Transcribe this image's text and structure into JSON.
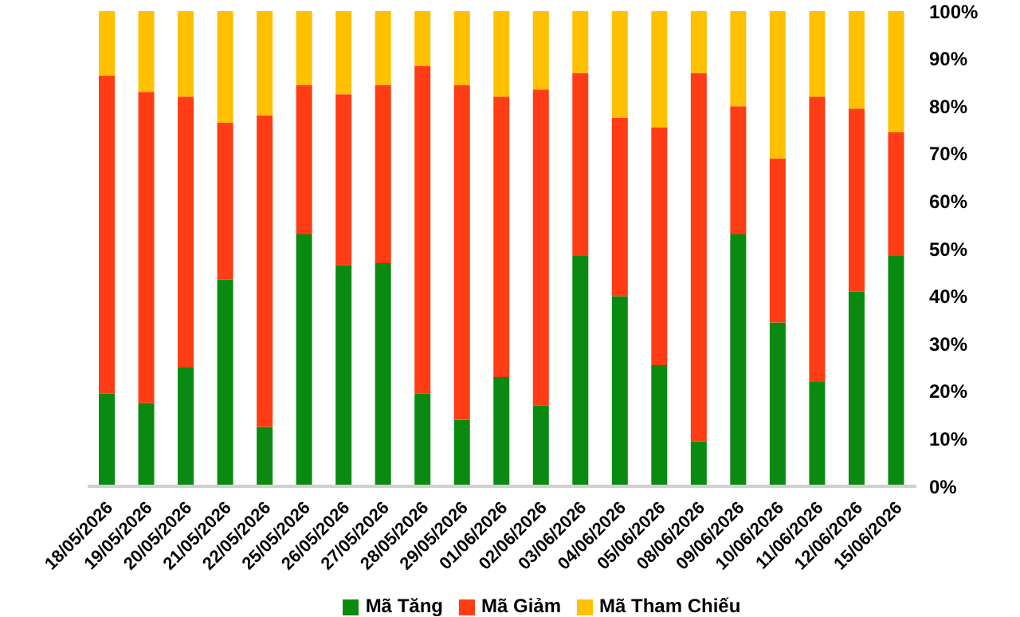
{
  "chart_data": {
    "type": "bar",
    "stacked": true,
    "categories": [
      "18/05/2026",
      "19/05/2026",
      "20/05/2026",
      "21/05/2026",
      "22/05/2026",
      "25/05/2026",
      "26/05/2026",
      "27/05/2026",
      "28/05/2026",
      "29/05/2026",
      "01/06/2026",
      "02/06/2026",
      "03/06/2026",
      "04/06/2026",
      "05/06/2026",
      "08/06/2026",
      "09/06/2026",
      "10/06/2026",
      "11/06/2026",
      "12/06/2026",
      "15/06/2026"
    ],
    "series": [
      {
        "name": "Mã Tăng",
        "color": "#0a8a10",
        "values": [
          19.5,
          17.5,
          25,
          43.5,
          12.5,
          53,
          46.5,
          47,
          19.5,
          14,
          23,
          17,
          48.5,
          40,
          25.5,
          9.5,
          53,
          34.5,
          22,
          41,
          48.5
        ]
      },
      {
        "name": "Mã Giảm",
        "color": "#ff3c14",
        "values": [
          67,
          65.5,
          57,
          33,
          65.5,
          31.5,
          36,
          37.5,
          69,
          70.5,
          59,
          66.5,
          38.5,
          37.5,
          50,
          77.5,
          27,
          34.5,
          60,
          38.5,
          26
        ]
      },
      {
        "name": "Mã Tham Chiếu",
        "color": "#ffc000",
        "values": [
          13.5,
          17,
          18,
          23.5,
          22,
          15.5,
          17.5,
          15.5,
          11.5,
          15.5,
          18,
          16.5,
          13,
          22.5,
          24.5,
          13,
          20,
          31,
          18,
          20.5,
          25.5
        ]
      }
    ],
    "ylim": [
      0,
      100
    ],
    "yticks": [
      {
        "value": 0,
        "label": "0%"
      },
      {
        "value": 10,
        "label": "10%"
      },
      {
        "value": 20,
        "label": "20%"
      },
      {
        "value": 30,
        "label": "30%"
      },
      {
        "value": 40,
        "label": "40%"
      },
      {
        "value": 50,
        "label": "50%"
      },
      {
        "value": 60,
        "label": "60%"
      },
      {
        "value": 70,
        "label": "70%"
      },
      {
        "value": 80,
        "label": "80%"
      },
      {
        "value": 90,
        "label": "90%"
      },
      {
        "value": 100,
        "label": "100%"
      }
    ],
    "grid": false,
    "legend": "bottom"
  }
}
